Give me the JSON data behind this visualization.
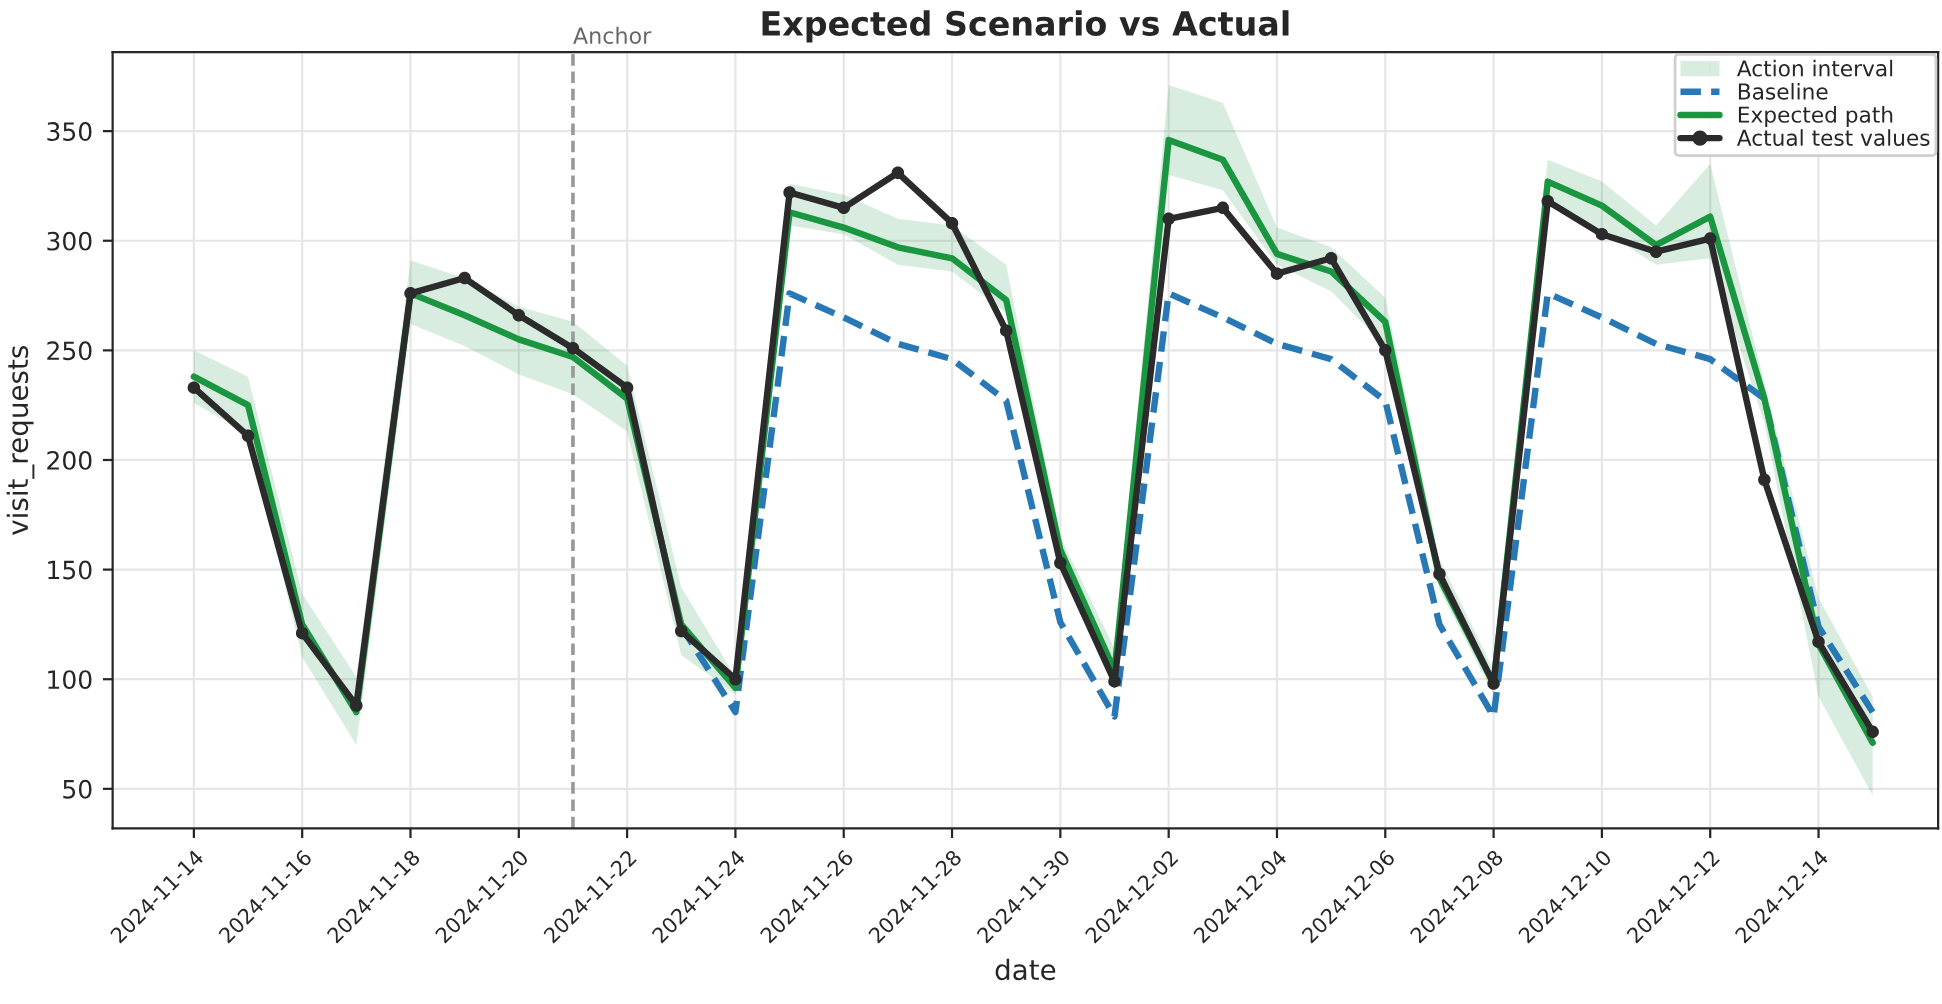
{
  "chart_data": {
    "type": "line",
    "title": "Expected Scenario vs Actual",
    "xlabel": "date",
    "ylabel": "visit_requests",
    "x": [
      "2024-11-14",
      "2024-11-15",
      "2024-11-16",
      "2024-11-17",
      "2024-11-18",
      "2024-11-19",
      "2024-11-20",
      "2024-11-21",
      "2024-11-22",
      "2024-11-23",
      "2024-11-24",
      "2024-11-25",
      "2024-11-26",
      "2024-11-27",
      "2024-11-28",
      "2024-11-29",
      "2024-11-30",
      "2024-12-01",
      "2024-12-02",
      "2024-12-03",
      "2024-12-04",
      "2024-12-05",
      "2024-12-06",
      "2024-12-07",
      "2024-12-08",
      "2024-12-09",
      "2024-12-10",
      "2024-12-11",
      "2024-12-12",
      "2024-12-13",
      "2024-12-14",
      "2024-12-15"
    ],
    "series": [
      {
        "name": "Baseline",
        "color": "#2878b5",
        "line_style": "dashed",
        "marker": "none",
        "values": [
          null,
          null,
          null,
          null,
          null,
          null,
          null,
          null,
          null,
          124,
          85,
          276,
          265,
          253,
          246,
          227,
          126,
          83,
          276,
          265,
          253,
          246,
          227,
          125,
          83,
          276,
          265,
          253,
          246,
          228,
          124,
          85
        ]
      },
      {
        "name": "Expected path",
        "color": "#1a9641",
        "line_style": "solid",
        "marker": "none",
        "values": [
          238,
          225,
          125,
          85,
          276,
          266,
          255,
          247,
          228,
          125,
          96,
          313,
          306,
          297,
          292,
          273,
          159,
          104,
          346,
          337,
          294,
          286,
          263,
          146,
          98,
          327,
          316,
          298,
          311,
          228,
          116,
          71
        ],
        "lower": [
          226,
          212,
          110,
          70,
          262,
          252,
          239,
          230,
          213,
          111,
          93,
          307,
          303,
          289,
          286,
          267,
          150,
          95,
          330,
          323,
          289,
          277,
          252,
          141,
          93,
          318,
          305,
          289,
          292,
          217,
          92,
          47
        ],
        "upper": [
          250,
          238,
          139,
          101,
          291,
          283,
          270,
          263,
          243,
          142,
          101,
          326,
          321,
          310,
          307,
          289,
          165,
          114,
          371,
          363,
          306,
          297,
          274,
          155,
          104,
          337,
          327,
          307,
          335,
          235,
          137,
          92
        ]
      },
      {
        "name": "Actual test values",
        "color": "#2b2b2b",
        "line_style": "solid",
        "marker": "circle",
        "values": [
          233,
          211,
          121,
          88,
          276,
          283,
          266,
          251,
          233,
          122,
          100,
          322,
          315,
          331,
          308,
          259,
          153,
          99,
          310,
          315,
          285,
          292,
          250,
          148,
          98,
          318,
          303,
          295,
          301,
          191,
          117,
          76
        ]
      }
    ],
    "xlim": [
      "2024-11-12T12:00",
      "2024-12-16T05:00"
    ],
    "ylim": [
      32,
      386
    ],
    "xticks": [
      "2024-11-14",
      "2024-11-16",
      "2024-11-18",
      "2024-11-20",
      "2024-11-22",
      "2024-11-24",
      "2024-11-26",
      "2024-11-28",
      "2024-11-30",
      "2024-12-02",
      "2024-12-04",
      "2024-12-06",
      "2024-12-08",
      "2024-12-10",
      "2024-12-12",
      "2024-12-14"
    ],
    "yticks": [
      50,
      100,
      150,
      200,
      250,
      300,
      350
    ],
    "ref_lines": [
      {
        "axis": "x",
        "value": "2024-11-21",
        "label": "Anchor",
        "color": "#999999",
        "line_style": "dashed"
      }
    ],
    "annotations": [
      "Action interval"
    ],
    "grid": true,
    "legend": "top right"
  }
}
